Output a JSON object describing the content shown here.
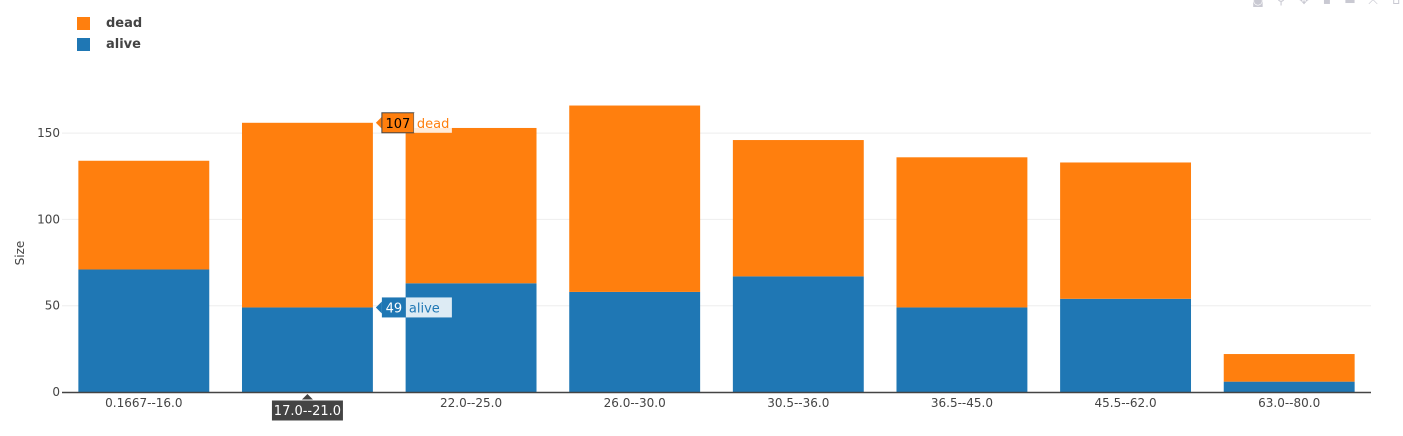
{
  "chart_data": {
    "type": "bar",
    "stacked": true,
    "categories": [
      "0.1667--16.0",
      "17.0--21.0",
      "22.0--25.0",
      "26.0--30.0",
      "30.5--36.0",
      "36.5--45.0",
      "45.5--62.0",
      "63.0--80.0"
    ],
    "series": [
      {
        "name": "alive",
        "color": "#1f77b4",
        "values": [
          71,
          49,
          63,
          58,
          67,
          49,
          54,
          6
        ]
      },
      {
        "name": "dead",
        "color": "#ff7f0e",
        "values": [
          63,
          107,
          90,
          108,
          79,
          87,
          79,
          16
        ]
      }
    ],
    "ylabel": "Size",
    "xlabel": "",
    "ylim": [
      0,
      175
    ],
    "yticks": [
      0,
      50,
      100,
      150
    ],
    "grid": true,
    "legend_position": "top-left",
    "hover": {
      "category": "17.0--21.0",
      "category_label": "17.0--21.0",
      "labels": [
        {
          "series": "dead",
          "value": "107",
          "name": "dead"
        },
        {
          "series": "alive",
          "value": "49",
          "name": "alive"
        }
      ]
    }
  },
  "legend": [
    {
      "label": "dead",
      "color": "#ff7f0e"
    },
    {
      "label": "alive",
      "color": "#1f77b4"
    }
  ],
  "toolbar": [
    {
      "name": "camera-icon",
      "glyph": "◙"
    },
    {
      "name": "zoom-icon",
      "glyph": "⚲"
    },
    {
      "name": "pan-icon",
      "glyph": "✥"
    },
    {
      "name": "zoom-in-icon",
      "glyph": "▪"
    },
    {
      "name": "zoom-out-icon",
      "glyph": "▬"
    },
    {
      "name": "autoscale-icon",
      "glyph": "⤧"
    },
    {
      "name": "reset-axes-icon",
      "glyph": "⌂"
    }
  ]
}
